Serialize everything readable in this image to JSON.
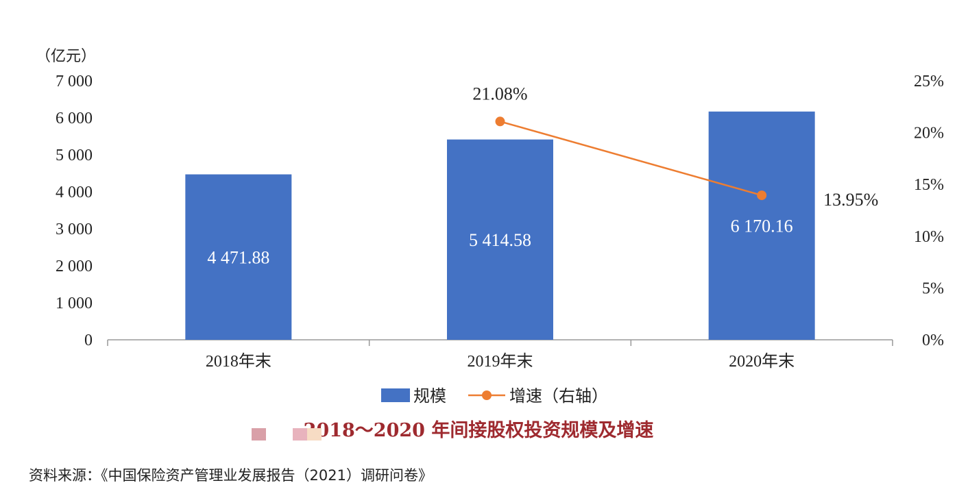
{
  "chart_data": {
    "type": "bar",
    "title": "2018～2020 年间接股权投资规模及增速",
    "categories": [
      "2018年末",
      "2019年末",
      "2020年末"
    ],
    "series": [
      {
        "name": "规模",
        "type": "bar",
        "axis": "left",
        "color": "#4472c4",
        "values": [
          4471.88,
          5414.58,
          6170.16
        ],
        "labels": [
          "4 471.88",
          "5 414.58",
          "6 170.16"
        ]
      },
      {
        "name": "增速（右轴）",
        "type": "line",
        "axis": "right",
        "color": "#ed7d31",
        "values": [
          null,
          21.08,
          13.95
        ],
        "labels": [
          null,
          "21.08%",
          "13.95%"
        ]
      }
    ],
    "y_left": {
      "unit": "（亿元）",
      "ylim": [
        0,
        7000
      ],
      "ticks": [
        0,
        1000,
        2000,
        3000,
        4000,
        5000,
        6000,
        7000
      ],
      "tick_labels": [
        "0",
        "1 000",
        "2 000",
        "3 000",
        "4 000",
        "5 000",
        "6 000",
        "7 000"
      ]
    },
    "y_right": {
      "ylim": [
        0,
        25
      ],
      "ticks": [
        0,
        5,
        10,
        15,
        20,
        25
      ],
      "tick_labels": [
        "0%",
        "5%",
        "10%",
        "15%",
        "20%",
        "25%"
      ]
    },
    "grid": false,
    "legend_position": "bottom"
  },
  "source": "资料来源：《中国保险资产管理业发展报告（2021）调研问卷》"
}
